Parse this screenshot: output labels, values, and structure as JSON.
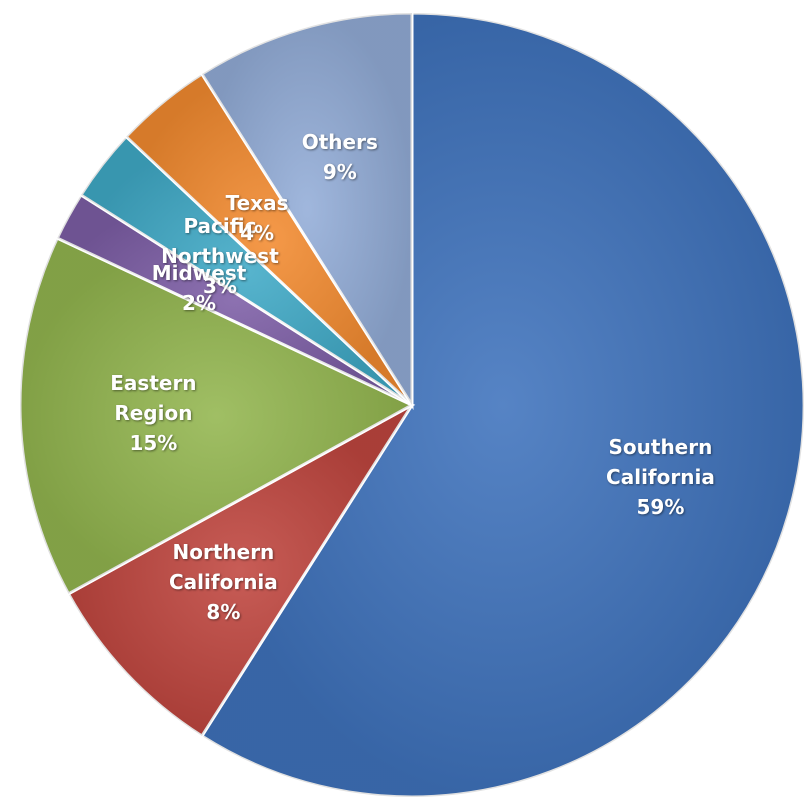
{
  "chart_data": {
    "type": "pie",
    "categories": [
      "Southern California",
      "Northern California",
      "Eastern Region",
      "Midwest",
      "Pacific Northwest",
      "Texas",
      "Others"
    ],
    "values": [
      59,
      8,
      15,
      2,
      3,
      4,
      9
    ],
    "value_labels": [
      "59%",
      "8%",
      "15%",
      "2%",
      "3%",
      "4%",
      "9%"
    ],
    "colors": [
      "#3f73bd",
      "#c0463f",
      "#93b64f",
      "#7d5ea6",
      "#40aac7",
      "#f38b30",
      "#93add8"
    ]
  }
}
